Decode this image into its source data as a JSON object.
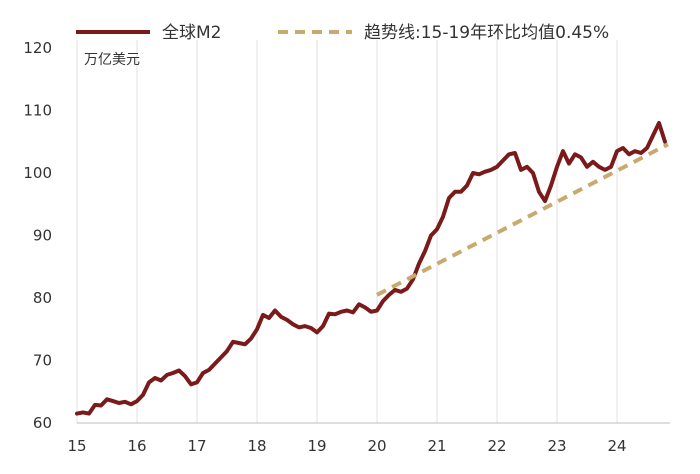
{
  "chart_data": {
    "type": "line",
    "unit_label": "万亿美元",
    "ylim": [
      60,
      120
    ],
    "yticks": [
      60,
      70,
      80,
      90,
      100,
      110,
      120
    ],
    "xlim": [
      2015,
      2024.85
    ],
    "xticks": [
      {
        "value": 2015,
        "label": "15"
      },
      {
        "value": 2016,
        "label": "16"
      },
      {
        "value": 2017,
        "label": "17"
      },
      {
        "value": 2018,
        "label": "18"
      },
      {
        "value": 2019,
        "label": "19"
      },
      {
        "value": 2020,
        "label": "20"
      },
      {
        "value": 2021,
        "label": "21"
      },
      {
        "value": 2022,
        "label": "22"
      },
      {
        "value": 2023,
        "label": "23"
      },
      {
        "value": 2024,
        "label": "24"
      }
    ],
    "grid": "vertical",
    "legend": "top",
    "series": [
      {
        "name": "全球M2",
        "color": "#7a1a1a",
        "style": "solid",
        "x": [
          2015.0,
          2015.1,
          2015.2,
          2015.3,
          2015.4,
          2015.5,
          2015.6,
          2015.7,
          2015.8,
          2015.9,
          2016.0,
          2016.1,
          2016.2,
          2016.3,
          2016.4,
          2016.5,
          2016.6,
          2016.7,
          2016.8,
          2016.9,
          2017.0,
          2017.1,
          2017.2,
          2017.3,
          2017.4,
          2017.5,
          2017.6,
          2017.7,
          2017.8,
          2017.9,
          2018.0,
          2018.1,
          2018.2,
          2018.3,
          2018.4,
          2018.5,
          2018.6,
          2018.7,
          2018.8,
          2018.9,
          2019.0,
          2019.1,
          2019.2,
          2019.3,
          2019.4,
          2019.5,
          2019.6,
          2019.7,
          2019.8,
          2019.9,
          2020.0,
          2020.1,
          2020.2,
          2020.3,
          2020.4,
          2020.5,
          2020.6,
          2020.7,
          2020.8,
          2020.9,
          2021.0,
          2021.1,
          2021.2,
          2021.3,
          2021.4,
          2021.5,
          2021.6,
          2021.7,
          2021.8,
          2021.9,
          2022.0,
          2022.1,
          2022.2,
          2022.3,
          2022.4,
          2022.5,
          2022.6,
          2022.7,
          2022.8,
          2022.9,
          2023.0,
          2023.1,
          2023.2,
          2023.3,
          2023.4,
          2023.5,
          2023.6,
          2023.7,
          2023.8,
          2023.9,
          2024.0,
          2024.1,
          2024.2,
          2024.3,
          2024.4,
          2024.5,
          2024.6,
          2024.7,
          2024.8
        ],
        "values": [
          61.5,
          61.7,
          61.5,
          62.9,
          62.8,
          63.8,
          63.5,
          63.2,
          63.4,
          63.0,
          63.5,
          64.5,
          66.5,
          67.2,
          66.8,
          67.7,
          68.0,
          68.4,
          67.5,
          66.2,
          66.5,
          68.0,
          68.5,
          69.5,
          70.5,
          71.5,
          73.0,
          72.8,
          72.6,
          73.5,
          75.0,
          77.3,
          76.8,
          78.0,
          77.0,
          76.5,
          75.8,
          75.3,
          75.5,
          75.2,
          74.5,
          75.5,
          77.5,
          77.4,
          77.8,
          78.0,
          77.7,
          79.0,
          78.5,
          77.8,
          78.0,
          79.5,
          80.5,
          81.3,
          81.0,
          81.5,
          83.0,
          85.5,
          87.5,
          90.0,
          91.0,
          93.0,
          96.0,
          97.0,
          97.0,
          98.0,
          100.0,
          99.8,
          100.2,
          100.5,
          101.0,
          102.0,
          103.0,
          103.2,
          100.5,
          101.0,
          100.0,
          97.0,
          95.5,
          98.0,
          101.0,
          103.5,
          101.5,
          103.0,
          102.5,
          101.0,
          101.8,
          101.0,
          100.5,
          101.0,
          103.5,
          104.0,
          103.0,
          103.5,
          103.2,
          104.0,
          106.0,
          108.0,
          105.0
        ]
      },
      {
        "name": "趋势线:15-19年环比均值0.45%",
        "color": "#c8aa6e",
        "style": "dashed",
        "x": [
          2020.0,
          2024.85
        ],
        "values": [
          80.5,
          104.6
        ]
      }
    ]
  }
}
